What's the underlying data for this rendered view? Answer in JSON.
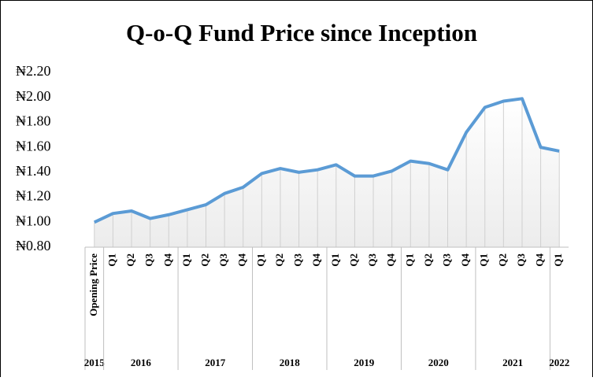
{
  "chart_data": {
    "type": "line",
    "title": "Q-o-Q Fund Price since Inception",
    "color": "#5b9bd5",
    "groups": [
      {
        "label": "2015",
        "categories": [
          "Opening Price"
        ],
        "values": [
          1.0
        ]
      },
      {
        "label": "2016",
        "categories": [
          "Q1",
          "Q2",
          "Q3",
          "Q4"
        ],
        "values": [
          1.07,
          1.09,
          1.03,
          1.06
        ]
      },
      {
        "label": "2017",
        "categories": [
          "Q1",
          "Q2",
          "Q3",
          "Q4"
        ],
        "values": [
          1.1,
          1.14,
          1.23,
          1.28
        ]
      },
      {
        "label": "2018",
        "categories": [
          "Q1",
          "Q2",
          "Q3",
          "Q4"
        ],
        "values": [
          1.39,
          1.43,
          1.4,
          1.42
        ]
      },
      {
        "label": "2019",
        "categories": [
          "Q1",
          "Q2",
          "Q3",
          "Q4"
        ],
        "values": [
          1.46,
          1.37,
          1.37,
          1.41
        ]
      },
      {
        "label": "2020",
        "categories": [
          "Q1",
          "Q2",
          "Q3",
          "Q4"
        ],
        "values": [
          1.49,
          1.47,
          1.42,
          1.72
        ]
      },
      {
        "label": "2021",
        "categories": [
          "Q1",
          "Q2",
          "Q3",
          "Q4"
        ],
        "values": [
          1.92,
          1.97,
          1.99,
          1.6
        ]
      },
      {
        "label": "2022",
        "categories": [
          "Q1"
        ],
        "values": [
          1.57
        ]
      }
    ],
    "ylim": [
      0.8,
      2.2
    ],
    "yticks": [
      {
        "value": 0.8,
        "label": "₦0.80"
      },
      {
        "value": 1.0,
        "label": "₦1.00"
      },
      {
        "value": 1.2,
        "label": "₦1.20"
      },
      {
        "value": 1.4,
        "label": "₦1.40"
      },
      {
        "value": 1.6,
        "label": "₦1.60"
      },
      {
        "value": 1.8,
        "label": "₦1.80"
      },
      {
        "value": 2.0,
        "label": "₦2.00"
      },
      {
        "value": 2.2,
        "label": "₦2.20"
      }
    ]
  }
}
